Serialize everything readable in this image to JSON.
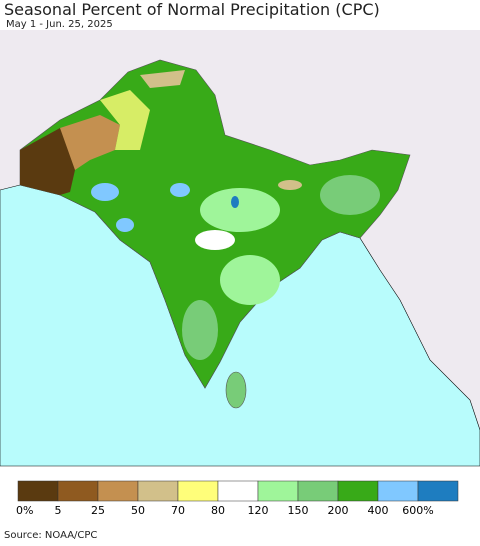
{
  "header": {
    "title": "Seasonal Percent of Normal Precipitation (CPC)",
    "subtitle": "May 1 - Jun. 25, 2025"
  },
  "legend": {
    "colors": [
      "#5a3a10",
      "#8f5a20",
      "#c49050",
      "#d2c08a",
      "#fffe7a",
      "#ffffff",
      "#9ff59a",
      "#78cc78",
      "#38aa18",
      "#80c8ff",
      "#1e7dc0"
    ],
    "labels": [
      "0%",
      "5",
      "25",
      "50",
      "70",
      "80",
      "120",
      "150",
      "200",
      "400",
      "600%"
    ]
  },
  "footer": {
    "source": "Source: NOAA/CPC"
  }
}
